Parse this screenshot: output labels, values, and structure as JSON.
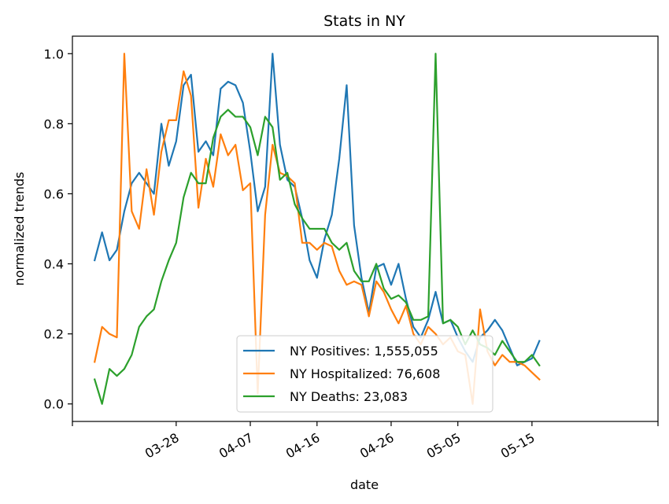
{
  "chart_data": {
    "type": "line",
    "title": "Stats in NY",
    "xlabel": "date",
    "ylabel": "normalized trends",
    "ylim": [
      -0.05,
      1.05
    ],
    "xlim": [
      "2020-03-14",
      "2020-06-01"
    ],
    "yticks": [
      0.0,
      0.2,
      0.4,
      0.6,
      0.8,
      1.0
    ],
    "ytick_labels": [
      "0.0",
      "0.2",
      "0.4",
      "0.6",
      "0.8",
      "1.0"
    ],
    "xtick_dates": [
      "2020-03-14",
      "2020-03-28",
      "2020-04-07",
      "2020-04-16",
      "2020-04-26",
      "2020-05-05",
      "2020-05-15",
      "2020-06-01"
    ],
    "xtick_labels": [
      "",
      "03-28",
      "04-07",
      "04-16",
      "04-26",
      "05-05",
      "05-15",
      ""
    ],
    "legend_position": "lower center",
    "grid": false,
    "dates": [
      "2020-03-17",
      "2020-03-18",
      "2020-03-19",
      "2020-03-20",
      "2020-03-21",
      "2020-03-22",
      "2020-03-23",
      "2020-03-24",
      "2020-03-25",
      "2020-03-26",
      "2020-03-27",
      "2020-03-28",
      "2020-03-29",
      "2020-03-30",
      "2020-03-31",
      "2020-04-01",
      "2020-04-02",
      "2020-04-03",
      "2020-04-04",
      "2020-04-05",
      "2020-04-06",
      "2020-04-07",
      "2020-04-08",
      "2020-04-09",
      "2020-04-10",
      "2020-04-11",
      "2020-04-12",
      "2020-04-13",
      "2020-04-14",
      "2020-04-15",
      "2020-04-16",
      "2020-04-17",
      "2020-04-18",
      "2020-04-19",
      "2020-04-20",
      "2020-04-21",
      "2020-04-22",
      "2020-04-23",
      "2020-04-24",
      "2020-04-25",
      "2020-04-26",
      "2020-04-27",
      "2020-04-28",
      "2020-04-29",
      "2020-04-30",
      "2020-05-01",
      "2020-05-02",
      "2020-05-03",
      "2020-05-04",
      "2020-05-05",
      "2020-05-06",
      "2020-05-07",
      "2020-05-08",
      "2020-05-09",
      "2020-05-10",
      "2020-05-11",
      "2020-05-12",
      "2020-05-13",
      "2020-05-14",
      "2020-05-15",
      "2020-05-16",
      "2020-05-17",
      "2020-05-18",
      "2020-05-19",
      "2020-05-20",
      "2020-05-21",
      "2020-05-22",
      "2020-05-23",
      "2020-05-24",
      "2020-05-25",
      "2020-05-26"
    ],
    "series": [
      {
        "name": "NY Positives: 1,555,055",
        "color": "#1f77b4",
        "values": [
          0.41,
          0.49,
          0.41,
          0.44,
          0.55,
          0.63,
          0.66,
          0.63,
          0.6,
          0.8,
          0.68,
          0.75,
          0.91,
          0.94,
          0.72,
          0.75,
          0.71,
          0.9,
          0.92,
          0.91,
          0.86,
          0.72,
          0.55,
          0.62,
          1.0,
          0.74,
          0.64,
          0.62,
          0.53,
          0.41,
          0.36,
          0.47,
          0.54,
          0.7,
          0.91,
          0.51,
          0.36,
          0.26,
          0.39,
          0.4,
          0.34,
          0.4,
          0.3,
          0.22,
          0.19,
          0.24,
          0.32,
          0.23,
          0.24,
          0.19,
          0.15,
          0.12,
          0.19,
          0.21,
          0.24,
          0.21,
          0.16,
          0.11,
          0.12,
          0.13,
          0.18,
          null,
          null,
          null,
          null,
          null,
          null,
          null,
          null,
          null,
          null
        ]
      },
      {
        "name": "NY Hospitalized: 76,608",
        "color": "#ff7f0e",
        "values": [
          0.12,
          0.22,
          0.2,
          0.19,
          1.0,
          0.55,
          0.5,
          0.67,
          0.54,
          0.72,
          0.81,
          0.81,
          0.95,
          0.88,
          0.56,
          0.7,
          0.62,
          0.77,
          0.71,
          0.74,
          0.61,
          0.63,
          0.03,
          0.54,
          0.74,
          0.66,
          0.65,
          0.63,
          0.46,
          0.46,
          0.44,
          0.46,
          0.45,
          0.38,
          0.34,
          0.35,
          0.34,
          0.25,
          0.35,
          0.32,
          0.27,
          0.23,
          0.28,
          0.2,
          0.17,
          0.22,
          0.2,
          0.17,
          0.19,
          0.15,
          0.14,
          0.0,
          0.27,
          0.15,
          0.11,
          0.14,
          0.12,
          0.12,
          0.11,
          0.09,
          0.07,
          null,
          null,
          null,
          null,
          null,
          null,
          null,
          null,
          null,
          null
        ]
      },
      {
        "name": "NY Deaths: 23,083",
        "color": "#2ca02c",
        "values": [
          0.07,
          0.0,
          0.1,
          0.08,
          0.1,
          0.14,
          0.22,
          0.25,
          0.27,
          0.35,
          0.41,
          0.46,
          0.59,
          0.66,
          0.63,
          0.63,
          0.76,
          0.82,
          0.84,
          0.82,
          0.82,
          0.79,
          0.71,
          0.82,
          0.79,
          0.64,
          0.66,
          0.57,
          0.53,
          0.5,
          0.5,
          0.5,
          0.46,
          0.44,
          0.46,
          0.38,
          0.35,
          0.35,
          0.4,
          0.33,
          0.3,
          0.31,
          0.29,
          0.24,
          0.24,
          0.25,
          1.0,
          0.23,
          0.24,
          0.22,
          0.17,
          0.21,
          0.17,
          0.16,
          0.14,
          0.18,
          0.15,
          0.12,
          0.12,
          0.14,
          0.11,
          null,
          null,
          null,
          null,
          null,
          null,
          null,
          null,
          null,
          null
        ]
      }
    ]
  }
}
